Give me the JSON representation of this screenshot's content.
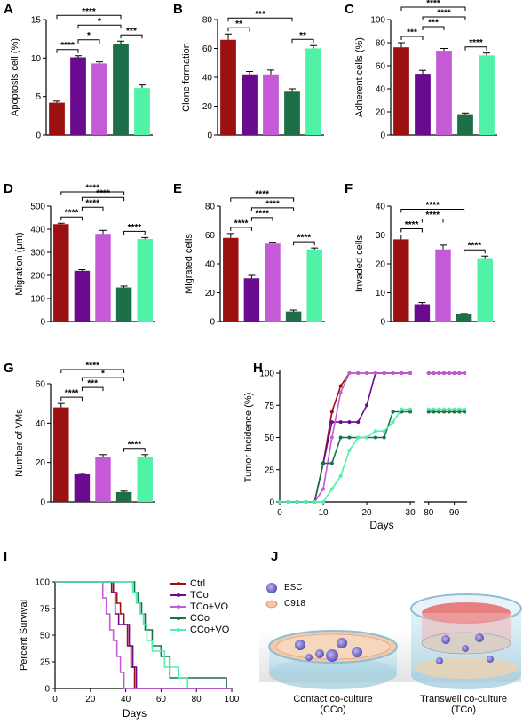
{
  "colors": {
    "ctrl": "#9b1010",
    "tco": "#6a0a8f",
    "tcovo": "#c45ad6",
    "cco": "#1d6f48",
    "ccovo": "#4ff2a6"
  },
  "chart_data": [
    {
      "type": "bar",
      "panel": "A",
      "ylabel": "Apoptosis cell (%)",
      "ylim": [
        0,
        15
      ],
      "yticks": [
        0,
        5,
        10,
        15
      ],
      "values": [
        4.2,
        10.1,
        9.3,
        11.8,
        6.1
      ],
      "errors": [
        0.2,
        0.2,
        0.2,
        0.4,
        0.4
      ],
      "sig": [
        {
          "a": 0,
          "b": 3,
          "text": "****"
        },
        {
          "a": 0,
          "b": 1,
          "text": "****"
        },
        {
          "a": 1,
          "b": 2,
          "text": "*"
        },
        {
          "a": 1,
          "b": 3,
          "text": "*"
        },
        {
          "a": 3,
          "b": 4,
          "text": "***"
        }
      ]
    },
    {
      "type": "bar",
      "panel": "B",
      "ylabel": "Clone formation",
      "ylim": [
        0,
        80
      ],
      "yticks": [
        0,
        20,
        40,
        60,
        80
      ],
      "values": [
        66,
        42,
        42,
        30,
        60
      ],
      "errors": [
        4,
        2,
        3,
        2,
        2
      ],
      "sig": [
        {
          "a": 0,
          "b": 3,
          "text": "***"
        },
        {
          "a": 0,
          "b": 1,
          "text": "**"
        },
        {
          "a": 3,
          "b": 4,
          "text": "**"
        }
      ]
    },
    {
      "type": "bar",
      "panel": "C",
      "ylabel": "Adherent cells (%)",
      "ylim": [
        0,
        100
      ],
      "yticks": [
        0,
        20,
        40,
        60,
        80,
        100
      ],
      "values": [
        76,
        53,
        73,
        18,
        69
      ],
      "errors": [
        4,
        3,
        2,
        1,
        2
      ],
      "sig": [
        {
          "a": 0,
          "b": 3,
          "text": "****"
        },
        {
          "a": 0,
          "b": 1,
          "text": "***"
        },
        {
          "a": 1,
          "b": 3,
          "text": "****"
        },
        {
          "a": 1,
          "b": 2,
          "text": "***"
        },
        {
          "a": 3,
          "b": 4,
          "text": "****"
        }
      ]
    },
    {
      "type": "bar",
      "panel": "D",
      "ylabel": "Migration (μm)",
      "ylim": [
        0,
        500
      ],
      "yticks": [
        0,
        100,
        200,
        300,
        400,
        500
      ],
      "values": [
        422,
        220,
        380,
        148,
        358
      ],
      "errors": [
        4,
        5,
        15,
        6,
        6
      ],
      "sig": [
        {
          "a": 0,
          "b": 3,
          "text": "****"
        },
        {
          "a": 0,
          "b": 1,
          "text": "****"
        },
        {
          "a": 1,
          "b": 3,
          "text": "****"
        },
        {
          "a": 1,
          "b": 2,
          "text": "****"
        },
        {
          "a": 3,
          "b": 4,
          "text": "****"
        }
      ]
    },
    {
      "type": "bar",
      "panel": "E",
      "ylabel": "Migrated cells",
      "ylim": [
        0,
        80
      ],
      "yticks": [
        0,
        20,
        40,
        60,
        80
      ],
      "values": [
        58,
        30,
        54,
        7,
        50
      ],
      "errors": [
        3,
        2,
        1,
        1,
        1
      ],
      "sig": [
        {
          "a": 0,
          "b": 3,
          "text": "****"
        },
        {
          "a": 0,
          "b": 1,
          "text": "****"
        },
        {
          "a": 1,
          "b": 3,
          "text": "****"
        },
        {
          "a": 1,
          "b": 2,
          "text": "****"
        },
        {
          "a": 3,
          "b": 4,
          "text": "****"
        }
      ]
    },
    {
      "type": "bar",
      "panel": "F",
      "ylabel": "Invaded cells",
      "ylim": [
        0,
        40
      ],
      "yticks": [
        0,
        10,
        20,
        30,
        40
      ],
      "values": [
        28.5,
        6,
        25,
        2.5,
        22
      ],
      "errors": [
        1.5,
        0.6,
        1.5,
        0.3,
        0.7
      ],
      "sig": [
        {
          "a": 0,
          "b": 3,
          "text": "****"
        },
        {
          "a": 0,
          "b": 1,
          "text": "****"
        },
        {
          "a": 1,
          "b": 2,
          "text": "****"
        },
        {
          "a": 3,
          "b": 4,
          "text": "****"
        }
      ]
    },
    {
      "type": "bar",
      "panel": "G",
      "ylabel": "Number of VMs",
      "ylim": [
        0,
        60
      ],
      "yticks": [
        0,
        20,
        40,
        60
      ],
      "values": [
        48,
        14,
        23,
        5,
        23
      ],
      "errors": [
        2,
        0.5,
        1,
        0.5,
        1
      ],
      "sig": [
        {
          "a": 0,
          "b": 3,
          "text": "****"
        },
        {
          "a": 0,
          "b": 1,
          "text": "****"
        },
        {
          "a": 1,
          "b": 3,
          "text": "*"
        },
        {
          "a": 1,
          "b": 2,
          "text": "***"
        },
        {
          "a": 3,
          "b": 4,
          "text": "****"
        }
      ]
    },
    {
      "type": "line",
      "panel": "H",
      "ylabel": "Tumor Incidence (%)",
      "xlabel": "Days",
      "ylim": [
        0,
        100
      ],
      "yticks": [
        0,
        25,
        50,
        75,
        100
      ],
      "xticks_left": [
        0,
        10,
        20,
        30
      ],
      "xticks_right": [
        80,
        90
      ],
      "x_break": [
        31,
        78
      ],
      "xlim": [
        0,
        95
      ],
      "series": [
        {
          "key": "ctrl",
          "x": [
            0,
            2,
            4,
            6,
            8,
            10,
            12,
            14,
            16,
            18,
            20,
            22,
            24,
            26,
            28,
            30,
            80,
            82,
            84,
            86,
            88,
            90,
            92,
            94
          ],
          "y": [
            0,
            0,
            0,
            0,
            0,
            30,
            70,
            90,
            100,
            100,
            100,
            100,
            100,
            100,
            100,
            100,
            100,
            100,
            100,
            100,
            100,
            100,
            100,
            100
          ]
        },
        {
          "key": "tco",
          "x": [
            0,
            2,
            4,
            6,
            8,
            10,
            12,
            14,
            16,
            18,
            20,
            22,
            24,
            26,
            28,
            30,
            80,
            82,
            84,
            86,
            88,
            90,
            92,
            94
          ],
          "y": [
            0,
            0,
            0,
            0,
            0,
            30,
            62,
            62,
            62,
            62,
            75,
            100,
            100,
            100,
            100,
            100,
            100,
            100,
            100,
            100,
            100,
            100,
            100,
            100
          ]
        },
        {
          "key": "tcovo",
          "x": [
            0,
            2,
            4,
            6,
            8,
            10,
            12,
            14,
            16,
            18,
            20,
            22,
            24,
            26,
            28,
            30,
            80,
            82,
            84,
            86,
            88,
            90,
            92,
            94
          ],
          "y": [
            0,
            0,
            0,
            0,
            0,
            10,
            50,
            85,
            100,
            100,
            100,
            100,
            100,
            100,
            100,
            100,
            100,
            100,
            100,
            100,
            100,
            100,
            100,
            100
          ]
        },
        {
          "key": "cco",
          "x": [
            0,
            2,
            4,
            6,
            8,
            10,
            12,
            14,
            16,
            18,
            20,
            22,
            24,
            26,
            28,
            30,
            80,
            82,
            84,
            86,
            88,
            90,
            92,
            94
          ],
          "y": [
            0,
            0,
            0,
            0,
            0,
            30,
            30,
            50,
            50,
            50,
            50,
            50,
            50,
            70,
            70,
            70,
            70,
            70,
            70,
            70,
            70,
            70,
            70,
            70
          ]
        },
        {
          "key": "ccovo",
          "x": [
            0,
            2,
            4,
            6,
            8,
            10,
            12,
            14,
            16,
            18,
            20,
            22,
            24,
            26,
            28,
            30,
            80,
            82,
            84,
            86,
            88,
            90,
            92,
            94
          ],
          "y": [
            0,
            0,
            0,
            0,
            0,
            0,
            10,
            20,
            40,
            50,
            50,
            55,
            55,
            62,
            72,
            72,
            72,
            72,
            72,
            72,
            72,
            72,
            72,
            72
          ]
        }
      ]
    },
    {
      "type": "line",
      "panel": "I",
      "ylabel": "Percent Survival",
      "xlabel": "Days",
      "xlim": [
        0,
        100
      ],
      "ylim": [
        0,
        100
      ],
      "xticks": [
        0,
        20,
        40,
        60,
        80,
        100
      ],
      "yticks": [
        0,
        25,
        50,
        75,
        100
      ],
      "series": [
        {
          "key": "ctrl",
          "name": "Ctrl",
          "x": [
            0,
            31,
            33,
            35,
            37,
            39,
            41,
            43,
            45,
            100
          ],
          "y": [
            100,
            100,
            90,
            80,
            70,
            60,
            40,
            20,
            0,
            0
          ]
        },
        {
          "key": "tco",
          "name": "TCo",
          "x": [
            0,
            30,
            32,
            34,
            36,
            40,
            42,
            44,
            46,
            100
          ],
          "y": [
            100,
            100,
            90,
            70,
            60,
            60,
            40,
            20,
            0,
            0
          ]
        },
        {
          "key": "tcovo",
          "name": "TCo+VO",
          "x": [
            0,
            25,
            27,
            29,
            31,
            33,
            35,
            37,
            39,
            100
          ],
          "y": [
            100,
            100,
            85,
            70,
            55,
            45,
            30,
            15,
            0,
            0
          ]
        },
        {
          "key": "cco",
          "name": "CCo",
          "x": [
            0,
            43,
            45,
            47,
            49,
            51,
            55,
            60,
            65,
            95,
            97
          ],
          "y": [
            100,
            100,
            90,
            80,
            70,
            55,
            40,
            30,
            10,
            10,
            0
          ]
        },
        {
          "key": "ccovo",
          "name": "CCo+VO",
          "x": [
            0,
            42,
            44,
            46,
            48,
            50,
            52,
            55,
            62,
            70,
            75
          ],
          "y": [
            100,
            100,
            90,
            80,
            70,
            60,
            45,
            35,
            20,
            10,
            0
          ]
        }
      ]
    }
  ],
  "panel_labels": [
    "A",
    "B",
    "C",
    "D",
    "E",
    "F",
    "G",
    "H",
    "I",
    "J"
  ],
  "legend_I": [
    "Ctrl",
    "TCo",
    "TCo+VO",
    "CCo",
    "CCo+VO"
  ],
  "schematic": {
    "key_esc": "ESC",
    "key_c918": "C918",
    "contact_label_1": "Contact co-culture",
    "contact_label_2": "(CCo)",
    "transwell_label_1": "Transwell co-culture",
    "transwell_label_2": "(TCo)"
  }
}
